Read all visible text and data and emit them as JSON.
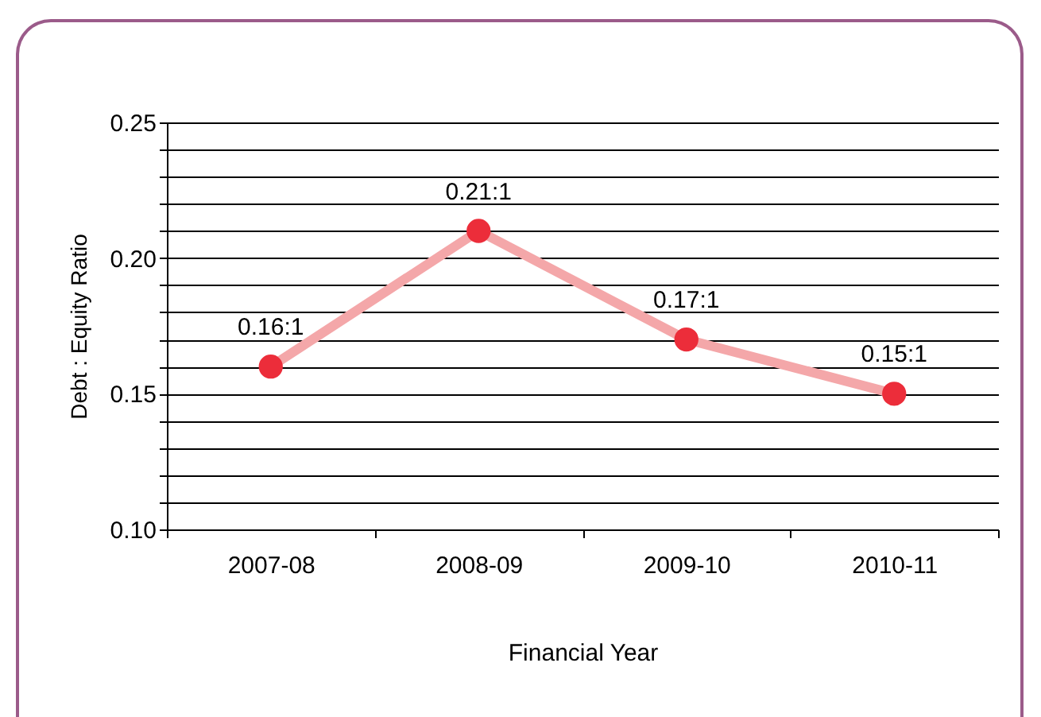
{
  "chart_data": {
    "type": "line",
    "xlabel": "Financial Year",
    "ylabel": "Debt : Equity Ratio",
    "categories": [
      "2007-08",
      "2008-09",
      "2009-10",
      "2010-11"
    ],
    "series": [
      {
        "color": "#f4a7a9",
        "colors": [
          "#ec2d3a",
          "#ec2d3a",
          "#ec2d3a",
          "#ec2d3a"
        ],
        "values": [
          0.16,
          0.21,
          0.17,
          0.15
        ],
        "value_labels": [
          "0.16:1",
          "0.21:1",
          "0.17:1",
          "0.15:1"
        ]
      }
    ],
    "ylim": [
      0.1,
      0.25
    ],
    "yticks": [
      {
        "value": 0.1,
        "label": "0.10"
      },
      {
        "value": 0.11,
        "label": null
      },
      {
        "value": 0.12,
        "label": null
      },
      {
        "value": 0.13,
        "label": null
      },
      {
        "value": 0.14,
        "label": null
      },
      {
        "value": 0.15,
        "label": "0.15"
      },
      {
        "value": 0.16,
        "label": null
      },
      {
        "value": 0.17,
        "label": null
      },
      {
        "value": 0.18,
        "label": null
      },
      {
        "value": 0.19,
        "label": null
      },
      {
        "value": 0.2,
        "label": "0.20"
      },
      {
        "value": 0.21,
        "label": null
      },
      {
        "value": 0.22,
        "label": null
      },
      {
        "value": 0.23,
        "label": null
      },
      {
        "value": 0.24,
        "label": null
      },
      {
        "value": 0.25,
        "label": "0.25"
      }
    ],
    "grid": "y",
    "marker": "circle",
    "line_style": "solid"
  }
}
